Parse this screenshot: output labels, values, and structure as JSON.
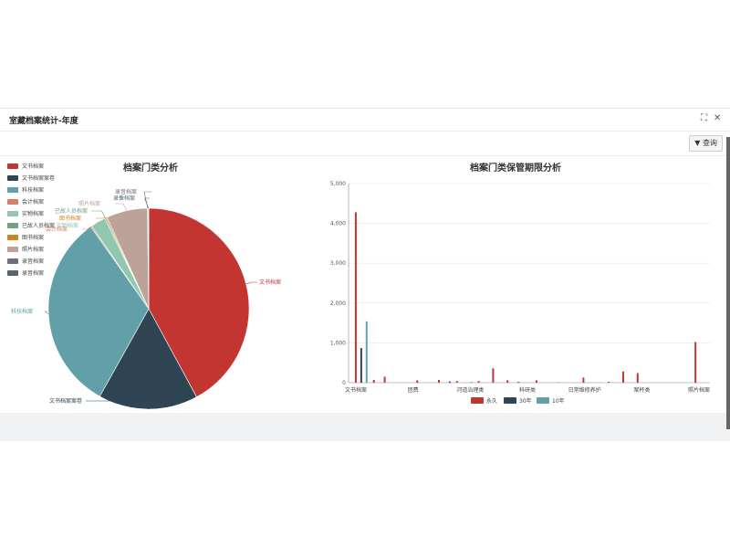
{
  "window": {
    "title": "室藏档案统计-年度",
    "expand_icon": "expand-icon",
    "close_icon": "close-icon"
  },
  "toolbar": {
    "query_icon": "filter-icon",
    "query_label": "查询"
  },
  "colors": {
    "red": "#c23531",
    "navy": "#2f4554",
    "teal": "#61a0a8",
    "salmon": "#d48265",
    "mint": "#91c7ae",
    "olive": "#749f83",
    "orange": "#ca8622",
    "tan": "#bda29a",
    "gray": "#6e7074",
    "slate": "#546570"
  },
  "chart_data": [
    {
      "type": "pie",
      "title": "档案门类分析",
      "legend": [
        "文书档案",
        "文书档案案卷",
        "科技档案",
        "会计档案",
        "实物档案",
        "已故人员档案",
        "图书档案",
        "照片档案",
        "录音档案",
        "录音档案"
      ],
      "legend_placement": "top-left",
      "slices": [
        {
          "label": "文书档案",
          "value": 42,
          "color": "#c23531"
        },
        {
          "label": "文书档案案卷",
          "value": 16,
          "color": "#2f4554"
        },
        {
          "label": "科技档案",
          "value": 32,
          "color": "#61a0a8"
        },
        {
          "label": "会计档案",
          "value": 0.2,
          "color": "#d48265"
        },
        {
          "label": "实物档案",
          "value": 2.4,
          "color": "#91c7ae"
        },
        {
          "label": "已故人员档案",
          "value": 0.2,
          "color": "#749f83"
        },
        {
          "label": "图书档案",
          "value": 0.2,
          "color": "#ca8622"
        },
        {
          "label": "照片档案",
          "value": 6.6,
          "color": "#bda29a"
        },
        {
          "label": "录音档案",
          "value": 0.1,
          "color": "#6e7074"
        },
        {
          "label": "录音档案",
          "value": 0.1,
          "color": "#546570"
        }
      ],
      "slice_labels": [
        "文书档案",
        "文书档案案卷",
        "科技档案",
        "照片档案",
        "录音档案",
        "录像档案",
        "图书档案",
        "实物档案",
        "已故人员档案",
        "会计档案"
      ]
    },
    {
      "type": "bar",
      "title": "档案门类保管期限分析",
      "x_tick_labels": [
        "文书档案",
        "团费",
        "河道治理类",
        "科研类",
        "日常维修养护",
        "案杯类",
        "照片档案"
      ],
      "y_ticks": [
        0,
        1000,
        2000,
        3000,
        4000,
        5000
      ],
      "y_tick_labels": [
        "0",
        "1,000",
        "2,000",
        "3,000",
        "4,000",
        "5,000"
      ],
      "ylim": [
        0,
        5000
      ],
      "grid": true,
      "legend_placement": "bottom",
      "series": [
        {
          "name": "永久",
          "color": "#c23531",
          "points": [
            [
              0.02,
              4280
            ],
            [
              0.07,
              70
            ],
            [
              0.1,
              150
            ],
            [
              0.19,
              60
            ],
            [
              0.25,
              70
            ],
            [
              0.3,
              40
            ],
            [
              0.36,
              40
            ],
            [
              0.4,
              360
            ],
            [
              0.44,
              60
            ],
            [
              0.52,
              60
            ],
            [
              0.65,
              130
            ],
            [
              0.76,
              280
            ],
            [
              0.8,
              240
            ],
            [
              0.96,
              1020
            ]
          ]
        },
        {
          "name": "30年",
          "color": "#2f4554",
          "points": [
            [
              0.035,
              870
            ],
            [
              0.28,
              30
            ],
            [
              0.47,
              20
            ],
            [
              0.72,
              20
            ]
          ]
        },
        {
          "name": "10年",
          "color": "#61a0a8",
          "points": [
            [
              0.05,
              1540
            ],
            [
              0.34,
              20
            ],
            [
              0.58,
              15
            ]
          ]
        }
      ]
    }
  ]
}
